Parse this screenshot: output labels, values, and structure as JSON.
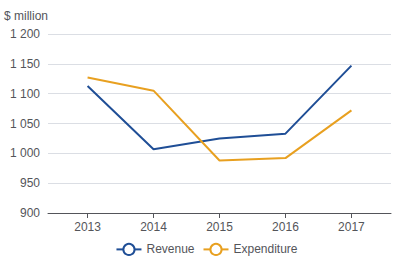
{
  "chart_data": {
    "type": "line",
    "x": [
      2013,
      2014,
      2015,
      2016,
      2017
    ],
    "xlim": [
      2012.4,
      2017.6
    ],
    "xticks": [
      2013,
      2014,
      2015,
      2016,
      2017
    ],
    "ylim": [
      900,
      1200
    ],
    "yticks": [
      900,
      950,
      {
        "value": 1000,
        "label": "1 000"
      },
      {
        "value": 1050,
        "label": "1 050"
      },
      {
        "value": 1100,
        "label": "1 100"
      },
      {
        "value": 1150,
        "label": "1 150"
      },
      {
        "value": 1200,
        "label": "1 200"
      }
    ],
    "ylabel": "$ million",
    "series": [
      {
        "name": "Revenue",
        "color": "#1f4e96",
        "values": [
          1113,
          1007,
          1025,
          1033,
          1147
        ]
      },
      {
        "name": "Expenditure",
        "color": "#e8a020",
        "values": [
          1127,
          1105,
          988,
          992,
          1072
        ]
      }
    ],
    "grid": true,
    "legend": "bottom"
  }
}
